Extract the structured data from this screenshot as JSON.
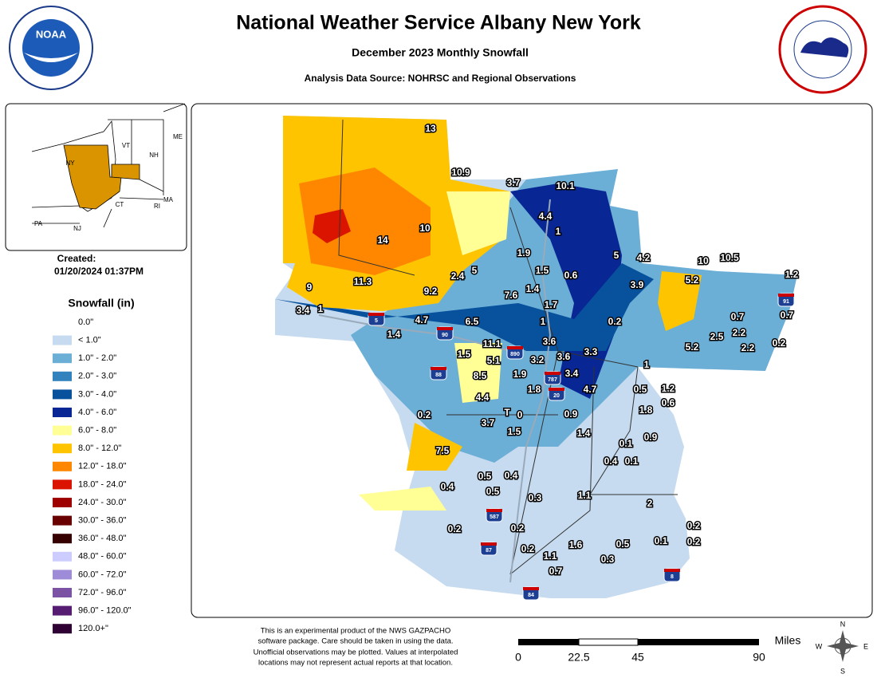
{
  "header": {
    "title": "National Weather Service Albany New York",
    "subtitle": "December 2023 Monthly Snowfall",
    "source": "Analysis Data Source: NOHRSC and Regional Observations"
  },
  "inset": {
    "labels": [
      "VT",
      "NH",
      "ME",
      "NY",
      "MA",
      "CT",
      "RI",
      "PA",
      "NJ"
    ]
  },
  "created": {
    "label": "Created:",
    "date": "01/20/2024 01:37PM"
  },
  "legend": {
    "title": "Snowfall (in)",
    "items": [
      {
        "label": "0.0\"",
        "color": null
      },
      {
        "label": "< 1.0\"",
        "color": "#c6dbef"
      },
      {
        "label": "1.0\" - 2.0\"",
        "color": "#6baed6"
      },
      {
        "label": "2.0\" - 3.0\"",
        "color": "#3182bd"
      },
      {
        "label": "3.0\" - 4.0\"",
        "color": "#08519c"
      },
      {
        "label": "4.0\" - 6.0\"",
        "color": "#082694"
      },
      {
        "label": "6.0\" - 8.0\"",
        "color": "#ffff96"
      },
      {
        "label": "8.0\" - 12.0\"",
        "color": "#ffc400"
      },
      {
        "label": "12.0\" - 18.0\"",
        "color": "#ff8700"
      },
      {
        "label": "18.0\" - 24.0\"",
        "color": "#db1400"
      },
      {
        "label": "24.0\" - 30.0\"",
        "color": "#9e0000"
      },
      {
        "label": "30.0\" - 36.0\"",
        "color": "#690000"
      },
      {
        "label": "36.0\" - 48.0\"",
        "color": "#360000"
      },
      {
        "label": "48.0\" - 60.0\"",
        "color": "#ccccff"
      },
      {
        "label": "60.0\" - 72.0\"",
        "color": "#9f8cd8"
      },
      {
        "label": "72.0\" - 96.0\"",
        "color": "#7c52a5"
      },
      {
        "label": "96.0\" - 120.0\"",
        "color": "#561c72"
      },
      {
        "label": "120.0+\"",
        "color": "#2e0033"
      }
    ]
  },
  "observations": [
    13,
    10.9,
    3.7,
    10.1,
    4.4,
    10,
    14,
    1,
    5,
    4.2,
    10,
    10.5,
    1.2,
    1.9,
    1.5,
    0.6,
    5.2,
    3.9,
    9,
    11.3,
    9.2,
    2.4,
    5,
    7.6,
    1.4,
    1.7,
    3.4,
    1,
    0.7,
    0.7,
    0.2,
    1,
    4.7,
    6.5,
    1.4,
    2.5,
    2.2,
    0.2,
    2.2,
    5.2,
    3.6,
    11.1,
    1.5,
    3.2,
    3.6,
    3.3,
    5.1,
    1,
    1.9,
    3.4,
    8.5,
    1.8,
    4.7,
    0.5,
    1.2,
    4.4,
    0.6,
    1.8,
    0.2,
    "T",
    0,
    0.9,
    3.7,
    1.5,
    1.4,
    0.9,
    0.1,
    7.5,
    0.4,
    0.1,
    0.5,
    0.4,
    0.4,
    0.5,
    0.3,
    1.1,
    2,
    0.2,
    0.2,
    0.2,
    0.1,
    0.2,
    0.5,
    1.6,
    0.2,
    1.1,
    0.3,
    0.7
  ],
  "highways": [
    "5",
    "90",
    "890",
    "88",
    "787",
    "20",
    "587",
    "87",
    "84",
    "91",
    "8"
  ],
  "disclaimer": [
    "This is an experimental product of the NWS GAZPACHO",
    "software package. Care should be taken in using the data.",
    "Unofficial observations may be plotted. Values at interpolated",
    "locations may not represent actual reports at that location."
  ],
  "scale": {
    "unit": "Miles",
    "ticks": [
      "0",
      "22.5",
      "45",
      "90"
    ]
  },
  "compass": [
    "N",
    "S",
    "E",
    "W"
  ]
}
